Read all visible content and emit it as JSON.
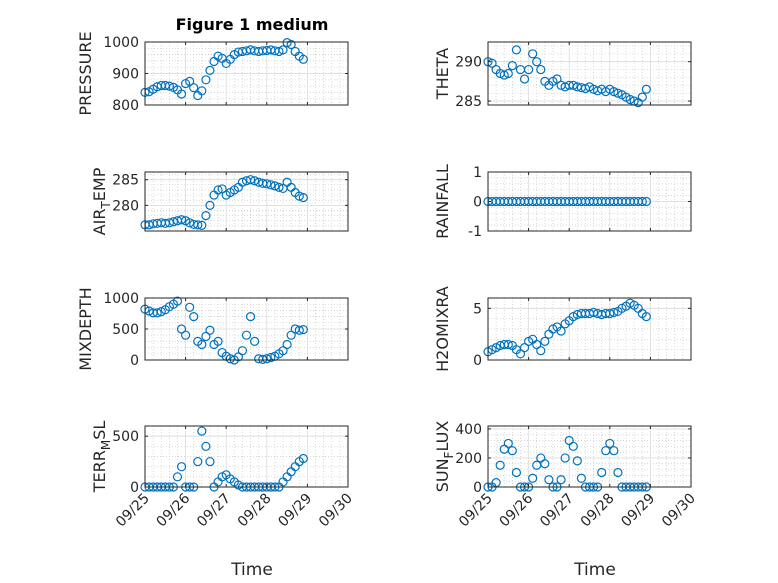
{
  "figure": {
    "title": "Figure 1 medium",
    "xlabel": "Time"
  },
  "colors": {
    "marker": "#0072BD",
    "axis": "#262626",
    "grid": "#c8c8c8"
  },
  "chart_data": [
    {
      "type": "scatter",
      "ylabel_parts": [
        "PRESSURE"
      ],
      "ylim": [
        800,
        1000
      ],
      "yticks": [
        800,
        900,
        1000
      ],
      "xticks": [
        "09/25",
        "09/26",
        "09/27",
        "09/28",
        "09/29",
        "09/30"
      ],
      "show_xticklabels": false,
      "title": "Figure 1 medium",
      "points_x": [
        0,
        0.1,
        0.2,
        0.3,
        0.4,
        0.5,
        0.6,
        0.7,
        0.8,
        0.9,
        1,
        1.1,
        1.2,
        1.3,
        1.4,
        1.5,
        1.6,
        1.7,
        1.8,
        1.9,
        2,
        2.1,
        2.2,
        2.3,
        2.4,
        2.5,
        2.6,
        2.7,
        2.8,
        2.9,
        3,
        3.1,
        3.2,
        3.3,
        3.4,
        3.5,
        3.6,
        3.7,
        3.8,
        3.9
      ],
      "points_y": [
        840,
        842,
        850,
        858,
        862,
        862,
        860,
        856,
        848,
        835,
        868,
        875,
        855,
        830,
        845,
        880,
        910,
        938,
        955,
        948,
        932,
        945,
        960,
        968,
        970,
        972,
        975,
        972,
        970,
        972,
        973,
        975,
        972,
        970,
        975,
        998,
        992,
        970,
        955,
        945
      ]
    },
    {
      "type": "scatter",
      "ylabel_parts": [
        "THETA"
      ],
      "ylim": [
        284.5,
        292.5
      ],
      "yticks": [
        285,
        290
      ],
      "xticks": [
        "09/25",
        "09/26",
        "09/27",
        "09/28",
        "09/29",
        "09/30"
      ],
      "show_xticklabels": false,
      "points_x": [
        0,
        0.1,
        0.2,
        0.3,
        0.4,
        0.5,
        0.6,
        0.7,
        0.8,
        0.9,
        1,
        1.1,
        1.2,
        1.3,
        1.4,
        1.5,
        1.6,
        1.7,
        1.8,
        1.9,
        2,
        2.1,
        2.2,
        2.3,
        2.4,
        2.5,
        2.6,
        2.7,
        2.8,
        2.9,
        3,
        3.1,
        3.2,
        3.3,
        3.4,
        3.5,
        3.6,
        3.7,
        3.8,
        3.9
      ],
      "points_y": [
        290,
        289.8,
        289,
        288.5,
        288.3,
        288.5,
        289.5,
        291.5,
        289,
        287.8,
        289,
        291,
        290,
        289,
        287.5,
        287,
        287.5,
        287.8,
        287,
        286.8,
        287,
        287,
        286.8,
        286.7,
        286.6,
        286.8,
        286.5,
        286.3,
        286.5,
        286.2,
        286.5,
        286.2,
        286,
        285.8,
        285.5,
        285.2,
        285,
        284.8,
        285.5,
        286.5
      ]
    },
    {
      "type": "scatter",
      "ylabel_parts": [
        "AIR",
        "T",
        "EMP"
      ],
      "ylim": [
        275,
        286.5
      ],
      "yticks": [
        280,
        285
      ],
      "xticks": [
        "09/25",
        "09/26",
        "09/27",
        "09/28",
        "09/29",
        "09/30"
      ],
      "show_xticklabels": false,
      "points_x": [
        0,
        0.1,
        0.2,
        0.3,
        0.4,
        0.5,
        0.6,
        0.7,
        0.8,
        0.9,
        1,
        1.1,
        1.2,
        1.3,
        1.4,
        1.5,
        1.6,
        1.7,
        1.8,
        1.9,
        2,
        2.1,
        2.2,
        2.3,
        2.4,
        2.5,
        2.6,
        2.7,
        2.8,
        2.9,
        3,
        3.1,
        3.2,
        3.3,
        3.4,
        3.5,
        3.6,
        3.7,
        3.8,
        3.9
      ],
      "points_y": [
        276.2,
        276.2,
        276.4,
        276.5,
        276.6,
        276.5,
        276.6,
        276.8,
        277,
        277.2,
        277,
        276.6,
        276.3,
        276.2,
        276.1,
        278,
        280,
        282,
        283,
        283.2,
        282,
        282.5,
        283,
        283.5,
        284.5,
        284.8,
        285,
        284.8,
        284.5,
        284.3,
        284.2,
        284,
        283.8,
        283.5,
        283.3,
        284.5,
        283.5,
        282.5,
        281.8,
        281.5
      ]
    },
    {
      "type": "scatter",
      "ylabel_parts": [
        "RAINFALL"
      ],
      "ylim": [
        -1,
        1
      ],
      "yticks": [
        -1,
        0,
        1
      ],
      "xticks": [
        "09/25",
        "09/26",
        "09/27",
        "09/28",
        "09/29",
        "09/30"
      ],
      "show_xticklabels": false,
      "points_x": [
        0,
        0.1,
        0.2,
        0.3,
        0.4,
        0.5,
        0.6,
        0.7,
        0.8,
        0.9,
        1,
        1.1,
        1.2,
        1.3,
        1.4,
        1.5,
        1.6,
        1.7,
        1.8,
        1.9,
        2,
        2.1,
        2.2,
        2.3,
        2.4,
        2.5,
        2.6,
        2.7,
        2.8,
        2.9,
        3,
        3.1,
        3.2,
        3.3,
        3.4,
        3.5,
        3.6,
        3.7,
        3.8,
        3.9
      ],
      "points_y": [
        0,
        0,
        0,
        0,
        0,
        0,
        0,
        0,
        0,
        0,
        0,
        0,
        0,
        0,
        0,
        0,
        0,
        0,
        0,
        0,
        0,
        0,
        0,
        0,
        0,
        0,
        0,
        0,
        0,
        0,
        0,
        0,
        0,
        0,
        0,
        0,
        0,
        0,
        0,
        0
      ]
    },
    {
      "type": "scatter",
      "ylabel_parts": [
        "MIXDEPTH"
      ],
      "ylim": [
        0,
        1000
      ],
      "yticks": [
        0,
        500,
        1000
      ],
      "xticks": [
        "09/25",
        "09/26",
        "09/27",
        "09/28",
        "09/29",
        "09/30"
      ],
      "show_xticklabels": false,
      "points_x": [
        0,
        0.1,
        0.2,
        0.3,
        0.4,
        0.5,
        0.6,
        0.7,
        0.8,
        0.9,
        1,
        1.1,
        1.2,
        1.3,
        1.4,
        1.5,
        1.6,
        1.7,
        1.8,
        1.9,
        2,
        2.1,
        2.2,
        2.3,
        2.4,
        2.5,
        2.6,
        2.7,
        2.8,
        2.9,
        3,
        3.1,
        3.2,
        3.3,
        3.4,
        3.5,
        3.6,
        3.7,
        3.8,
        3.9
      ],
      "points_y": [
        820,
        790,
        760,
        760,
        780,
        810,
        860,
        900,
        950,
        500,
        400,
        850,
        700,
        300,
        250,
        380,
        480,
        250,
        300,
        120,
        60,
        20,
        0,
        50,
        150,
        400,
        700,
        300,
        20,
        10,
        20,
        40,
        60,
        100,
        150,
        250,
        400,
        500,
        480,
        490
      ]
    },
    {
      "type": "scatter",
      "ylabel_parts": [
        "H2OMIXRA"
      ],
      "ylim": [
        0,
        6
      ],
      "yticks": [
        0,
        5
      ],
      "xticks": [
        "09/25",
        "09/26",
        "09/27",
        "09/28",
        "09/29",
        "09/30"
      ],
      "show_xticklabels": false,
      "points_x": [
        0,
        0.1,
        0.2,
        0.3,
        0.4,
        0.5,
        0.6,
        0.7,
        0.8,
        0.9,
        1,
        1.1,
        1.2,
        1.3,
        1.4,
        1.5,
        1.6,
        1.7,
        1.8,
        1.9,
        2,
        2.1,
        2.2,
        2.3,
        2.4,
        2.5,
        2.6,
        2.7,
        2.8,
        2.9,
        3,
        3.1,
        3.2,
        3.3,
        3.4,
        3.5,
        3.6,
        3.7,
        3.8,
        3.9
      ],
      "points_y": [
        0.8,
        1,
        1.2,
        1.4,
        1.5,
        1.5,
        1.4,
        1,
        0.6,
        1.2,
        1.8,
        2,
        1.5,
        0.9,
        1.8,
        2.5,
        3,
        3.2,
        2.8,
        3.5,
        3.8,
        4.2,
        4.4,
        4.5,
        4.5,
        4.5,
        4.6,
        4.5,
        4.4,
        4.5,
        4.5,
        4.6,
        4.7,
        5,
        5.2,
        5.5,
        5.3,
        5,
        4.5,
        4.2
      ]
    },
    {
      "type": "scatter",
      "ylabel_parts": [
        "TERR",
        "M",
        "SL"
      ],
      "ylim": [
        0,
        600
      ],
      "yticks": [
        0,
        500
      ],
      "xticks": [
        "09/25",
        "09/26",
        "09/27",
        "09/28",
        "09/29",
        "09/30"
      ],
      "show_xticklabels": true,
      "points_x": [
        0,
        0.1,
        0.2,
        0.3,
        0.4,
        0.5,
        0.6,
        0.7,
        0.8,
        0.9,
        1,
        1.1,
        1.2,
        1.3,
        1.4,
        1.5,
        1.6,
        1.7,
        1.8,
        1.9,
        2,
        2.1,
        2.2,
        2.3,
        2.4,
        2.5,
        2.6,
        2.7,
        2.8,
        2.9,
        3,
        3.1,
        3.2,
        3.3,
        3.4,
        3.5,
        3.6,
        3.7,
        3.8,
        3.9
      ],
      "points_y": [
        0,
        0,
        0,
        0,
        0,
        0,
        0,
        0,
        100,
        200,
        0,
        0,
        0,
        250,
        550,
        400,
        250,
        0,
        50,
        100,
        120,
        80,
        50,
        20,
        0,
        0,
        0,
        0,
        0,
        0,
        0,
        0,
        0,
        0,
        50,
        100,
        150,
        200,
        250,
        280
      ]
    },
    {
      "type": "scatter",
      "ylabel_parts": [
        "SUN",
        "F",
        "LUX"
      ],
      "ylim": [
        0,
        420
      ],
      "yticks": [
        0,
        200,
        400
      ],
      "xticks": [
        "09/25",
        "09/26",
        "09/27",
        "09/28",
        "09/29",
        "09/30"
      ],
      "show_xticklabels": true,
      "points_x": [
        0,
        0.1,
        0.2,
        0.3,
        0.4,
        0.5,
        0.6,
        0.7,
        0.8,
        0.9,
        1,
        1.1,
        1.2,
        1.3,
        1.4,
        1.5,
        1.6,
        1.7,
        1.8,
        1.9,
        2,
        2.1,
        2.2,
        2.3,
        2.4,
        2.5,
        2.6,
        2.7,
        2.8,
        2.9,
        3,
        3.1,
        3.2,
        3.3,
        3.4,
        3.5,
        3.6,
        3.7,
        3.8,
        3.9
      ],
      "points_y": [
        0,
        0,
        30,
        150,
        260,
        300,
        250,
        100,
        0,
        0,
        0,
        60,
        150,
        200,
        160,
        50,
        0,
        0,
        50,
        200,
        320,
        280,
        180,
        60,
        0,
        0,
        0,
        0,
        100,
        250,
        300,
        250,
        100,
        0,
        0,
        0,
        0,
        0,
        0,
        0
      ]
    }
  ]
}
